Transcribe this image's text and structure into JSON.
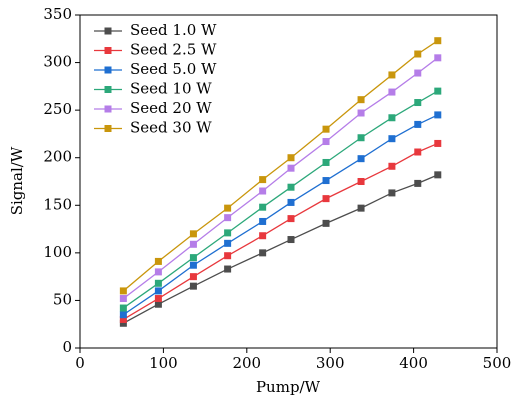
{
  "chart_data": {
    "type": "line",
    "xlabel": "Pump/W",
    "ylabel": "Signal/W",
    "x": [
      52,
      94,
      136,
      177,
      219,
      253,
      295,
      337,
      374,
      405,
      429
    ],
    "series": [
      {
        "name": "Seed 1.0 W",
        "color": "#4d4d4d",
        "values": [
          26,
          46,
          65,
          83,
          100,
          114,
          131,
          147,
          163,
          173,
          182
        ]
      },
      {
        "name": "Seed 2.5 W",
        "color": "#e8383d",
        "values": [
          30,
          52,
          75,
          97,
          118,
          136,
          157,
          175,
          191,
          206,
          215
        ]
      },
      {
        "name": "Seed 5.0 W",
        "color": "#1f6fd1",
        "values": [
          35,
          60,
          87,
          110,
          133,
          153,
          176,
          199,
          220,
          235,
          245
        ]
      },
      {
        "name": "Seed 10 W",
        "color": "#2ca87a",
        "values": [
          42,
          68,
          95,
          121,
          148,
          169,
          195,
          221,
          242,
          258,
          270
        ]
      },
      {
        "name": "Seed 20 W",
        "color": "#b57de8",
        "values": [
          52,
          80,
          109,
          137,
          165,
          189,
          217,
          247,
          269,
          289,
          305
        ]
      },
      {
        "name": "Seed 30 W",
        "color": "#c9960c",
        "values": [
          60,
          91,
          120,
          147,
          177,
          200,
          230,
          261,
          287,
          309,
          323
        ]
      }
    ],
    "xlim": [
      0,
      500
    ],
    "xticks": [
      0,
      100,
      200,
      300,
      400,
      500
    ],
    "ylim": [
      0,
      350
    ],
    "yticks": [
      0,
      50,
      100,
      150,
      200,
      250,
      300,
      350
    ],
    "legend": "upper left",
    "grid": false
  }
}
